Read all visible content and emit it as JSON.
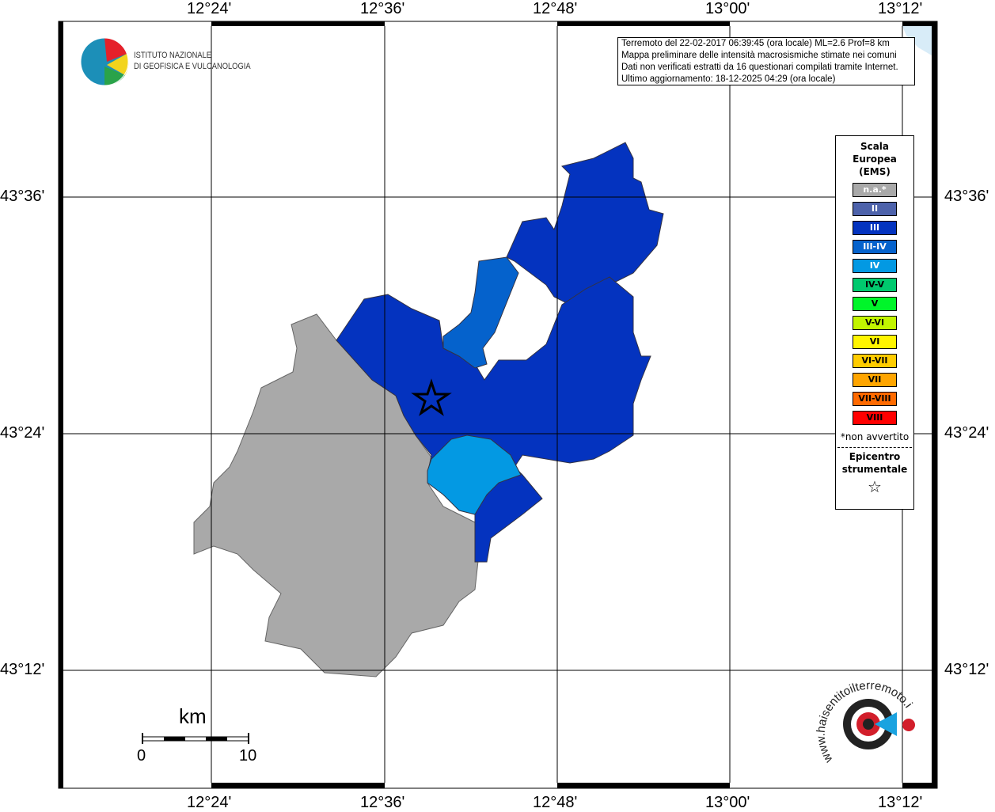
{
  "map": {
    "lon_ticks": [
      "12°24'",
      "12°36'",
      "12°48'",
      "13°00'",
      "13°12'"
    ],
    "lat_ticks": [
      "43°36'",
      "43°24'",
      "43°12'"
    ],
    "info_lines": [
      "Terremoto del 22-02-2017 06:39:45 (ora locale) ML=2.6 Prof=8 km",
      "Mappa preliminare delle intensità macrosismiche stimate nei comuni",
      "Dati non verificati estratti da 16 questionari compilati tramite Internet.",
      "Ultimo aggiornamento: 18-12-2025 04:29 (ora locale)"
    ],
    "logo_ingv": [
      "ISTITUTO NAZIONALE",
      "DI GEOFISICA E VULCANOLOGIA"
    ],
    "logo_haisentito": "www.haisentitoilterremoto.it",
    "scale": {
      "unit": "km",
      "min": "0",
      "max": "10"
    },
    "regions": [
      {
        "intensity": "n.a.",
        "color": "#a9a9a9"
      },
      {
        "intensity": "III",
        "color": "#0433bf"
      },
      {
        "intensity": "III-IV",
        "color": "#0562cc"
      },
      {
        "intensity": "IV",
        "color": "#0399e3"
      }
    ],
    "epicenter_icon": "star-icon"
  },
  "legend": {
    "title": [
      "Scala",
      "Europea",
      "(EMS)"
    ],
    "items": [
      {
        "label": "n.a.*",
        "color": "#a9a9a9",
        "text": "#fff"
      },
      {
        "label": "II",
        "color": "#4d62ab",
        "text": "#fff"
      },
      {
        "label": "III",
        "color": "#0433bf",
        "text": "#fff"
      },
      {
        "label": "III-IV",
        "color": "#0562cc",
        "text": "#fff"
      },
      {
        "label": "IV",
        "color": "#0399e3",
        "text": "#fff"
      },
      {
        "label": "IV-V",
        "color": "#00c96e",
        "text": "#000"
      },
      {
        "label": "V",
        "color": "#00f52a",
        "text": "#000"
      },
      {
        "label": "V-VI",
        "color": "#c2f500",
        "text": "#000"
      },
      {
        "label": "VI",
        "color": "#fff500",
        "text": "#000"
      },
      {
        "label": "VI-VII",
        "color": "#ffcc00",
        "text": "#000"
      },
      {
        "label": "VII",
        "color": "#ffa500",
        "text": "#000"
      },
      {
        "label": "VII-VIII",
        "color": "#ff6a00",
        "text": "#000"
      },
      {
        "label": "VIII",
        "color": "#ff0000",
        "text": "#000"
      }
    ],
    "note": "*non avvertito",
    "epicenter": [
      "Epicentro",
      "strumentale"
    ]
  }
}
